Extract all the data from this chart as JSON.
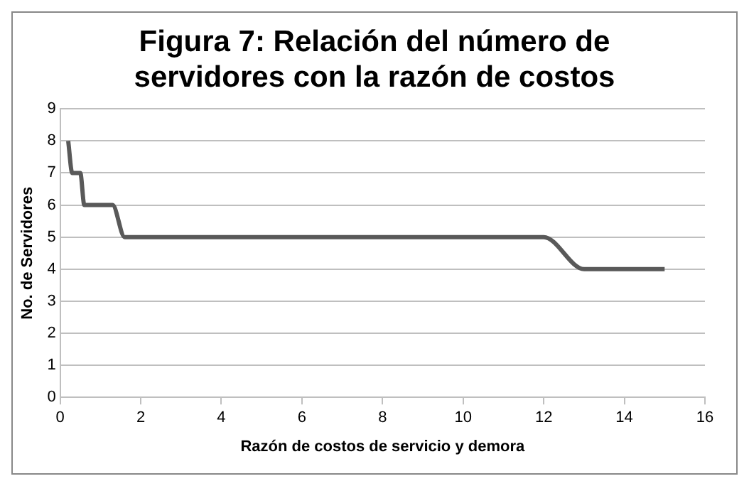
{
  "chart_data": {
    "type": "line",
    "title": "Figura 7: Relación del número de servidores con la razón de costos",
    "xlabel": "Razón de costos de servicio y demora",
    "ylabel": "No. de Servidores",
    "series": [
      {
        "color": "#595959",
        "x": [
          0.2,
          0.3,
          0.5,
          0.6,
          1.3,
          1.6,
          10,
          12,
          13,
          15
        ],
        "values": [
          8,
          7,
          7,
          6,
          6,
          5,
          5,
          5,
          4,
          4
        ]
      }
    ],
    "xlim": [
      0,
      16
    ],
    "xticks": [
      0,
      2,
      4,
      6,
      8,
      10,
      12,
      14,
      16
    ],
    "ylim": [
      0,
      9
    ],
    "yticks": [
      0,
      1,
      2,
      3,
      4,
      5,
      6,
      7,
      8,
      9
    ],
    "grid": "y",
    "legend": false,
    "marker": "none",
    "line_style": "solid"
  }
}
